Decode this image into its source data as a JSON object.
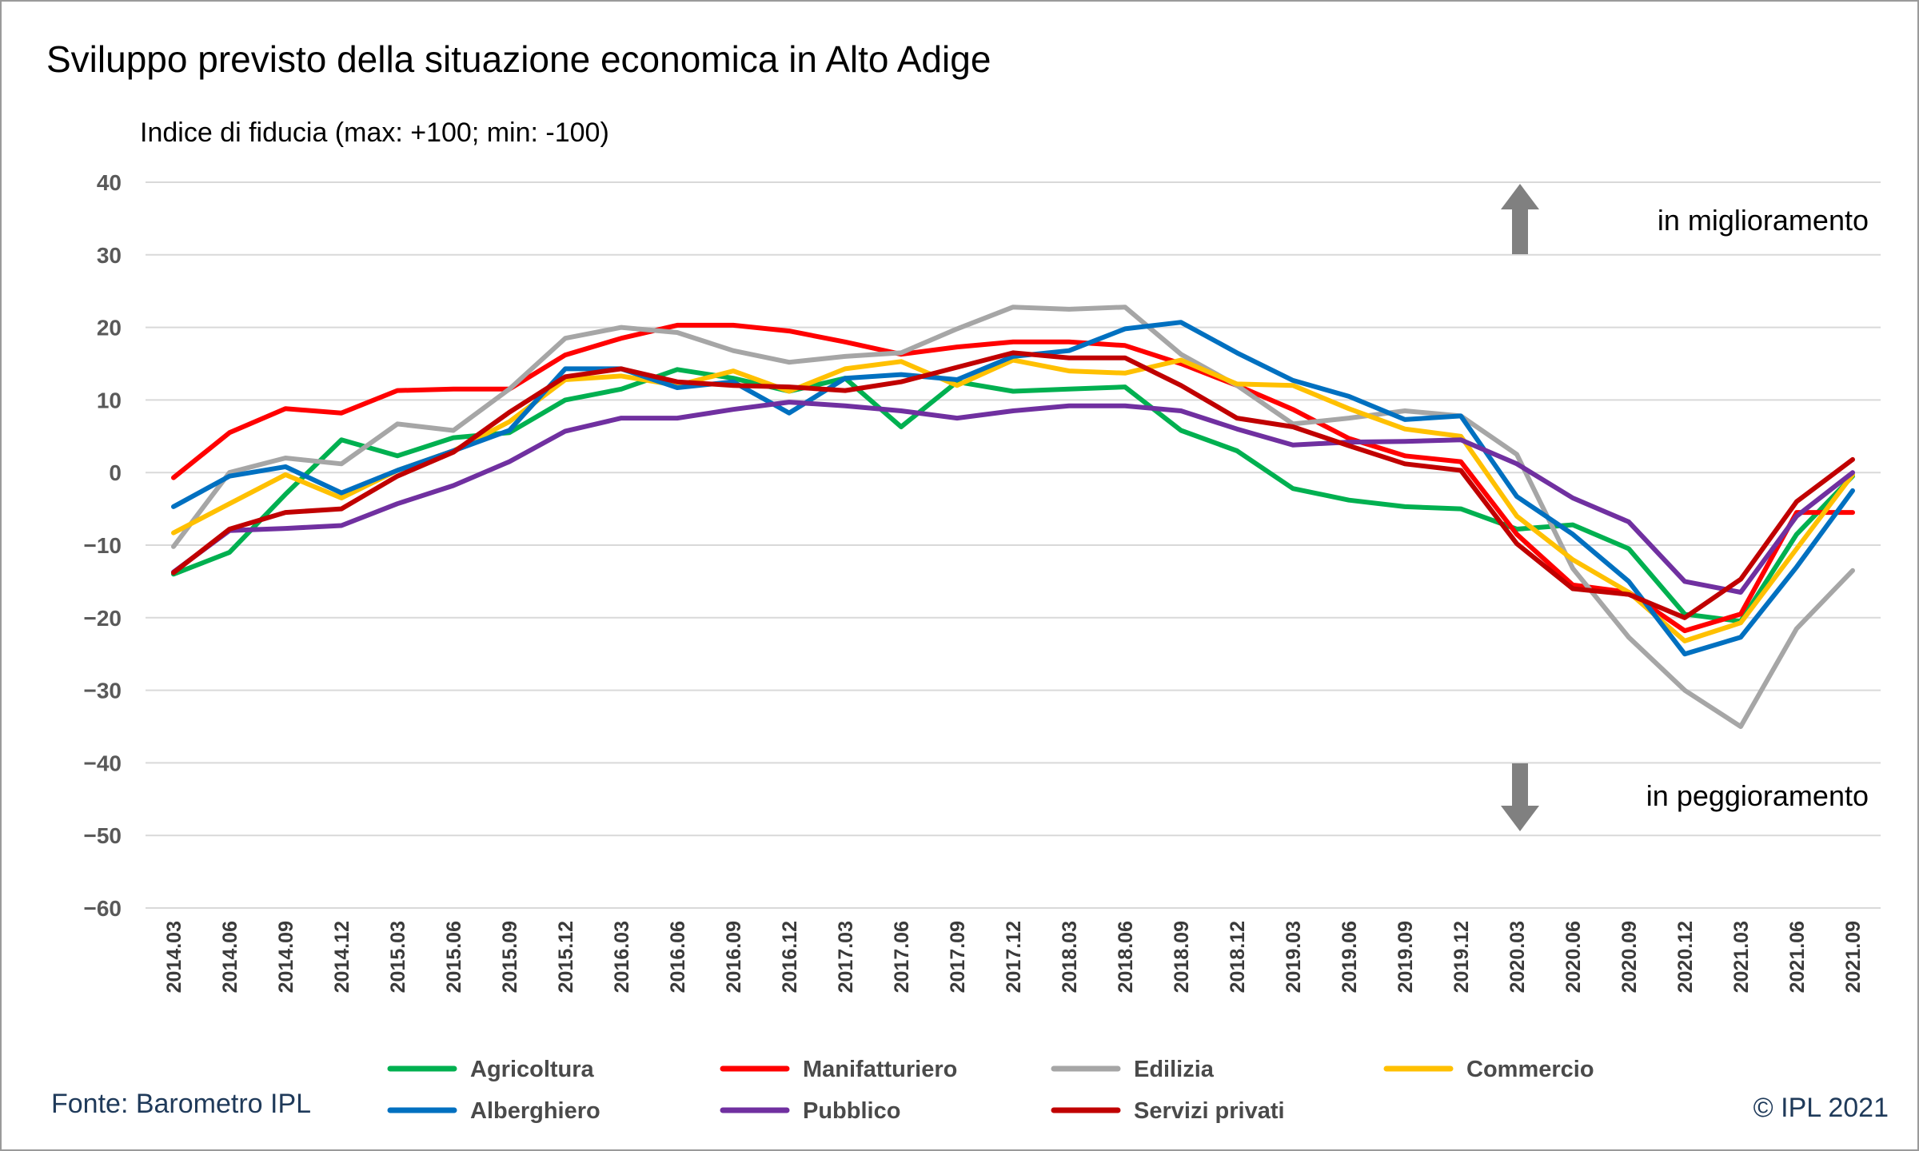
{
  "title": "Sviluppo previsto della situazione economica in Alto Adige",
  "footer": {
    "source": "Fonte: Barometro IPL",
    "copyright": "© IPL 2021"
  },
  "chart_data": {
    "type": "line",
    "subtitle": "Indice di fiducia (max: +100; min: -100)",
    "ylim": [
      -60,
      40
    ],
    "yticks": [
      40,
      30,
      20,
      10,
      0,
      -10,
      -20,
      -30,
      -40,
      -50,
      -60
    ],
    "ytick_labels": [
      "40",
      "30",
      "20",
      "10",
      "0",
      "−10",
      "−20",
      "−30",
      "−40",
      "−50",
      "−60"
    ],
    "grid": true,
    "legend_position": "bottom",
    "annotations": {
      "up": "in miglioramento",
      "down": "in peggioramento"
    },
    "x": [
      "2014.03",
      "2014.06",
      "2014.09",
      "2014.12",
      "2015.03",
      "2015.06",
      "2015.09",
      "2015.12",
      "2016.03",
      "2016.06",
      "2016.09",
      "2016.12",
      "2017.03",
      "2017.06",
      "2017.09",
      "2017.12",
      "2018.03",
      "2018.06",
      "2018.09",
      "2018.12",
      "2019.03",
      "2019.06",
      "2019.09",
      "2019.12",
      "2020.03",
      "2020.06",
      "2020.09",
      "2020.12",
      "2021.03",
      "2021.06",
      "2021.09"
    ],
    "series": [
      {
        "name": "Agricoltura",
        "color": "#00b050",
        "values": [
          -14,
          -11,
          -3,
          4.5,
          2.3,
          4.8,
          5.5,
          10,
          11.5,
          14.2,
          13,
          11.2,
          13,
          6.3,
          12.5,
          11.2,
          11.5,
          11.8,
          5.8,
          3,
          -2.2,
          -3.8,
          -4.7,
          -5,
          -7.8,
          -7.2,
          -10.5,
          -19.5,
          -20.5,
          -8.5,
          -0.5
        ]
      },
      {
        "name": "Manifatturiero",
        "color": "#ff0000",
        "values": [
          -0.7,
          5.5,
          8.8,
          8.2,
          11.3,
          11.5,
          11.5,
          16.2,
          18.5,
          20.3,
          20.3,
          19.5,
          18,
          16.3,
          17.3,
          18,
          18,
          17.5,
          15,
          12,
          8.7,
          4.7,
          2.3,
          1.5,
          -8.5,
          -15.5,
          -16.5,
          -21.8,
          -19.5,
          -5.5,
          -5.5
        ]
      },
      {
        "name": "Edilizia",
        "color": "#a6a6a6",
        "values": [
          -10.2,
          0,
          2,
          1.2,
          6.7,
          5.8,
          11.5,
          18.5,
          20,
          19.3,
          16.8,
          15.2,
          16,
          16.5,
          19.8,
          22.8,
          22.5,
          22.8,
          16.3,
          12,
          6.7,
          7.5,
          8.5,
          7.8,
          2.5,
          -13.2,
          -22.7,
          -30,
          -35,
          -21.5,
          -13.5
        ]
      },
      {
        "name": "Commercio",
        "color": "#ffc000",
        "values": [
          -8.3,
          -4.3,
          -0.3,
          -3.5,
          0.3,
          3,
          7,
          12.8,
          13.3,
          12,
          14,
          11.2,
          14.3,
          15.3,
          12,
          15.5,
          14,
          13.7,
          15.5,
          12.2,
          12,
          8.8,
          6,
          5,
          -6,
          -12,
          -16.5,
          -23.2,
          -20.7,
          -10.5,
          -0.3
        ]
      },
      {
        "name": "Alberghiero",
        "color": "#0070c0",
        "values": [
          -4.7,
          -0.5,
          0.8,
          -2.8,
          0.3,
          3,
          5.8,
          14.3,
          14.3,
          11.7,
          12.5,
          8.2,
          13,
          13.5,
          12.8,
          16,
          16.8,
          19.8,
          20.7,
          16.5,
          12.7,
          10.5,
          7.3,
          7.8,
          -3.3,
          -8.5,
          -15,
          -25,
          -22.7,
          -13,
          -2.5
        ]
      },
      {
        "name": "Pubblico",
        "color": "#7030a0",
        "values": [
          -13.7,
          -8,
          -7.7,
          -7.3,
          -4.3,
          -1.8,
          1.5,
          5.7,
          7.5,
          7.5,
          8.7,
          9.7,
          9.2,
          8.5,
          7.5,
          8.5,
          9.2,
          9.2,
          8.5,
          6,
          3.8,
          4.2,
          4.3,
          4.5,
          1.2,
          -3.5,
          -6.8,
          -15,
          -16.5,
          -6,
          0
        ]
      },
      {
        "name": "Servizi privati",
        "color": "#c00000",
        "values": [
          -13.8,
          -7.8,
          -5.5,
          -5,
          -0.5,
          2.8,
          8.3,
          13.2,
          14.3,
          12.5,
          12,
          11.8,
          11.3,
          12.5,
          14.5,
          16.5,
          15.8,
          15.8,
          12,
          7.5,
          6.3,
          3.7,
          1.2,
          0.3,
          -9.8,
          -16,
          -16.8,
          -20,
          -14.7,
          -4,
          1.8
        ]
      }
    ]
  }
}
